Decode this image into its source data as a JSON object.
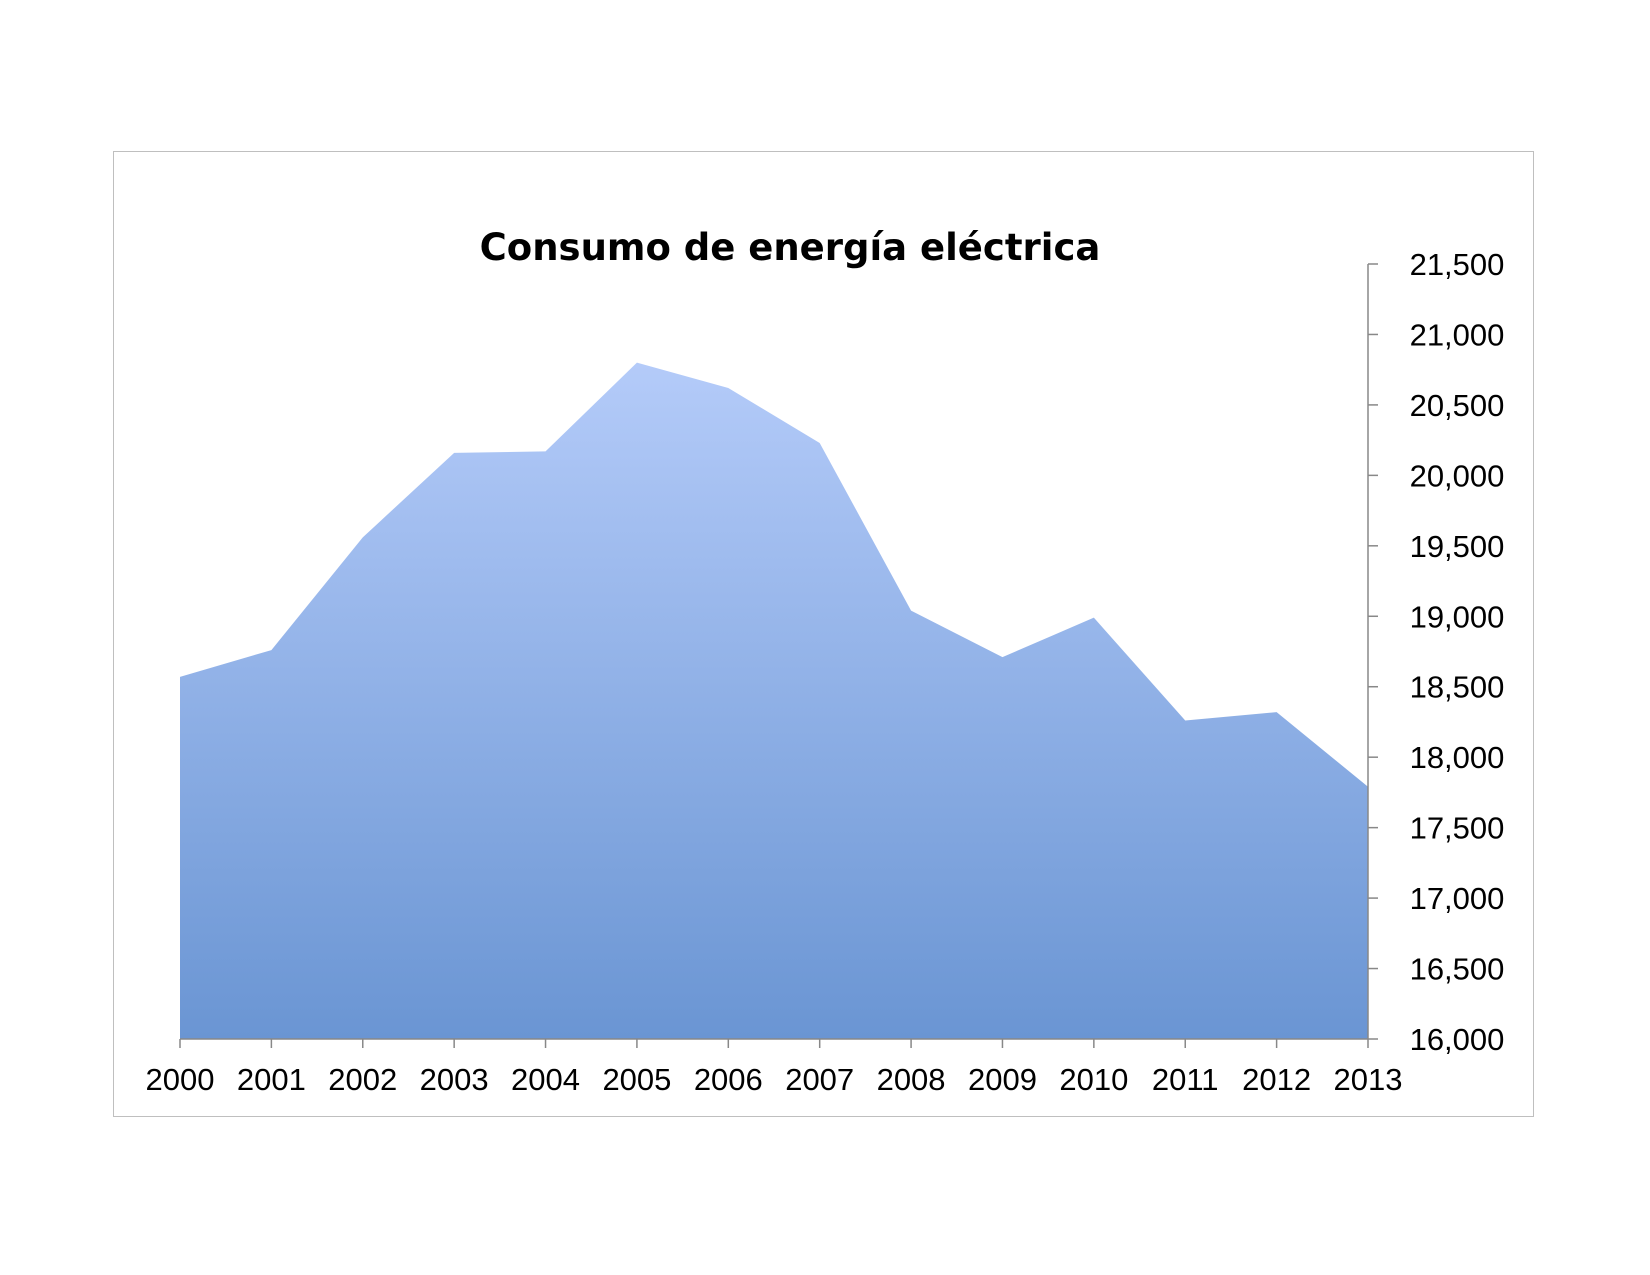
{
  "chart_data": {
    "type": "area",
    "title": "Consumo de energía eléctrica",
    "xlabel": "",
    "ylabel": "",
    "categories": [
      "2000",
      "2001",
      "2002",
      "2003",
      "2004",
      "2005",
      "2006",
      "2007",
      "2008",
      "2009",
      "2010",
      "2011",
      "2012",
      "2013"
    ],
    "series": [
      {
        "values": [
          18570,
          18760,
          19560,
          20160,
          20170,
          20800,
          20620,
          20230,
          19040,
          18710,
          18990,
          18260,
          18320,
          17790
        ]
      }
    ],
    "ylim": [
      16000,
      21500
    ],
    "yticks": [
      16000,
      16500,
      17000,
      17500,
      18000,
      18500,
      19000,
      19500,
      20000,
      20500,
      21000,
      21500
    ],
    "ytick_labels": [
      "16,000",
      "16,500",
      "17,000",
      "17,500",
      "18,000",
      "18,500",
      "19,000",
      "19,500",
      "20,000",
      "20,500",
      "21,000",
      "21,500"
    ],
    "y_axis_position": "right",
    "grid": false,
    "legend": "none",
    "fill_gradient": {
      "top": "#b4cbf9",
      "bottom": "#6a95d3"
    },
    "axis_color": "#888888"
  }
}
